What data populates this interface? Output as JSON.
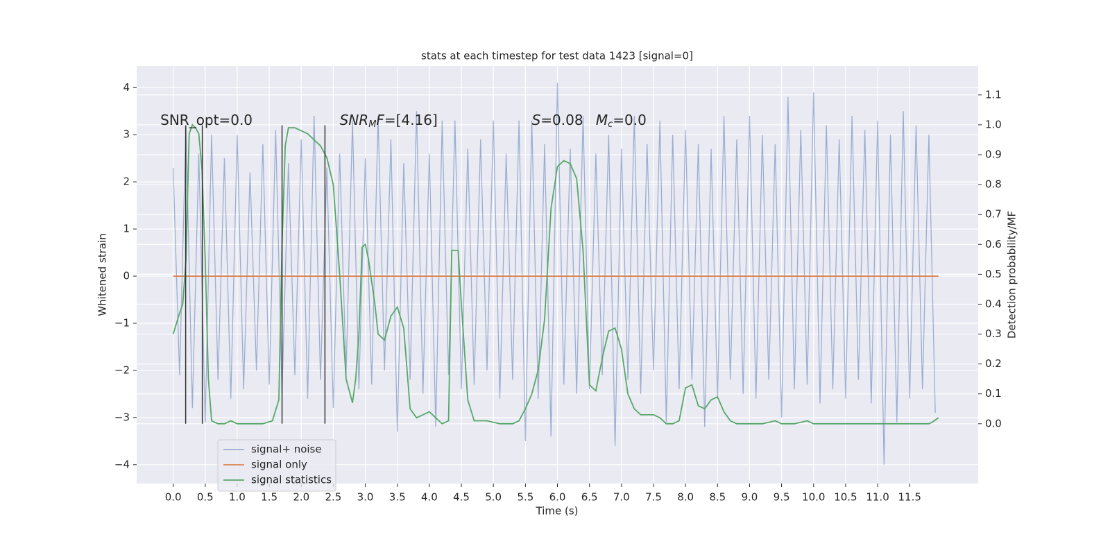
{
  "chart_data": {
    "type": "line",
    "title": "stats at each timestep for test data 1423 [signal=0]",
    "xlabel": "Time (s)",
    "ylabel": "Whitened strain",
    "y2label": "Detection probability/MF",
    "xlim": [
      -0.57,
      12.57
    ],
    "ylim": [
      -4.4,
      4.46
    ],
    "y2lim": [
      -0.2,
      1.197
    ],
    "grid": true,
    "legend": "lower left",
    "xticks": [
      {
        "value": 0,
        "label": "0.0"
      },
      0.5,
      {
        "value": 1,
        "label": "1.0"
      },
      1.5,
      {
        "value": 2,
        "label": "2.0"
      },
      2.5,
      {
        "value": 3,
        "label": "3.0"
      },
      3.5,
      {
        "value": 4,
        "label": "4.0"
      },
      4.5,
      {
        "value": 5,
        "label": "5.0"
      },
      5.5,
      {
        "value": 6,
        "label": "6.0"
      },
      6.5,
      {
        "value": 7,
        "label": "7.0"
      },
      7.5,
      {
        "value": 8,
        "label": "8.0"
      },
      8.5,
      {
        "value": 9,
        "label": "9.0"
      },
      9.5,
      {
        "value": 10,
        "label": "10.0"
      },
      10.5,
      {
        "value": 11,
        "label": "11.0"
      },
      11.5
    ],
    "yticks": [
      {
        "value": -4,
        "label": "−4"
      },
      {
        "value": -3,
        "label": "−3"
      },
      {
        "value": -2,
        "label": "−2"
      },
      {
        "value": -1,
        "label": "−1"
      },
      0,
      1,
      2,
      3,
      4
    ],
    "y2ticks": [
      {
        "value": 0,
        "label": "0.0"
      },
      0.1,
      0.2,
      0.3,
      0.4,
      0.5,
      0.6,
      0.7,
      0.8,
      0.9,
      {
        "value": 1,
        "label": "1.0"
      },
      1.1
    ],
    "series": [
      {
        "name": "signal+ noise",
        "color": "#4c72b0",
        "opacity": 0.5,
        "x": [
          0,
          0.1,
          0.2,
          0.3,
          0.4,
          0.5,
          0.6,
          0.7,
          0.8,
          0.9,
          1,
          1.1,
          1.2,
          1.3,
          1.4,
          1.5,
          1.6,
          1.7,
          1.8,
          1.9,
          2,
          2.1,
          2.2,
          2.3,
          2.4,
          2.5,
          2.6,
          2.7,
          2.8,
          2.9,
          3,
          3.1,
          3.2,
          3.3,
          3.4,
          3.5,
          3.6,
          3.7,
          3.8,
          3.9,
          4,
          4.1,
          4.2,
          4.3,
          4.4,
          4.5,
          4.6,
          4.7,
          4.8,
          4.9,
          5,
          5.1,
          5.2,
          5.3,
          5.4,
          5.5,
          5.6,
          5.7,
          5.8,
          5.9,
          6,
          6.1,
          6.2,
          6.3,
          6.4,
          6.5,
          6.6,
          6.7,
          6.8,
          6.9,
          7,
          7.1,
          7.2,
          7.3,
          7.4,
          7.5,
          7.6,
          7.7,
          7.8,
          7.9,
          8,
          8.1,
          8.2,
          8.3,
          8.4,
          8.5,
          8.6,
          8.7,
          8.8,
          8.9,
          9,
          9.1,
          9.2,
          9.3,
          9.4,
          9.5,
          9.6,
          9.7,
          9.8,
          9.9,
          10,
          10.1,
          10.2,
          10.3,
          10.4,
          10.5,
          10.6,
          10.7,
          10.8,
          10.9,
          11,
          11.1,
          11.2,
          11.3,
          11.4,
          11.5,
          11.6,
          11.7,
          11.8,
          11.9
        ],
        "values": [
          2.3,
          -2.1,
          3.2,
          -2.8,
          2.6,
          -3.1,
          3.0,
          -2.2,
          2.5,
          -2.6,
          3.0,
          -2.4,
          2.2,
          -2.0,
          2.8,
          -2.3,
          3.1,
          -2.5,
          2.4,
          -2.1,
          2.9,
          -2.6,
          3.4,
          -2.2,
          2.3,
          -2.8,
          2.6,
          -2.1,
          3.3,
          -2.4,
          2.5,
          -2.3,
          3.4,
          -2.0,
          2.9,
          -3.3,
          2.4,
          -2.2,
          3.5,
          -2.5,
          2.6,
          -3.2,
          3.3,
          -2.1,
          3.3,
          -2.4,
          2.7,
          -2.3,
          2.9,
          -2.0,
          3.3,
          -2.6,
          2.6,
          -2.2,
          3.3,
          -3.5,
          3.3,
          -2.6,
          2.8,
          -3.4,
          4.1,
          -2.3,
          2.7,
          -2.5,
          3.4,
          -2.4,
          2.6,
          -2.1,
          3.0,
          -3.6,
          2.7,
          -2.2,
          3.4,
          -2.5,
          2.8,
          -2.0,
          3.3,
          -3.1,
          3.0,
          -2.4,
          3.1,
          -2.2,
          2.8,
          -3.2,
          2.7,
          -2.6,
          3.4,
          -2.2,
          2.9,
          -2.5,
          3.4,
          -2.6,
          3.0,
          -2.2,
          2.8,
          -3.0,
          3.8,
          -2.4,
          3.1,
          -2.3,
          3.9,
          -2.7,
          3.2,
          -2.4,
          2.9,
          -2.6,
          3.4,
          -2.2,
          3.1,
          -2.7,
          3.3,
          -4.0,
          3.0,
          -3.1,
          3.5,
          -2.6,
          3.2,
          -2.4,
          3.0,
          -2.9
        ]
      },
      {
        "name": "signal only",
        "color": "#dd8452",
        "x": [
          0,
          11.95
        ],
        "values": [
          0,
          0
        ]
      },
      {
        "name": "signal statistics",
        "color": "#55a868",
        "axis": "y2",
        "x": [
          0,
          0.1,
          0.15,
          0.2,
          0.25,
          0.3,
          0.35,
          0.4,
          0.45,
          0.5,
          0.55,
          0.6,
          0.7,
          0.8,
          0.9,
          1,
          1.2,
          1.4,
          1.55,
          1.65,
          1.7,
          1.75,
          1.8,
          1.9,
          2.1,
          2.3,
          2.4,
          2.5,
          2.6,
          2.7,
          2.8,
          2.85,
          2.9,
          2.95,
          3,
          3.05,
          3.15,
          3.2,
          3.3,
          3.4,
          3.5,
          3.6,
          3.7,
          3.8,
          3.9,
          4,
          4.1,
          4.2,
          4.3,
          4.35,
          4.45,
          4.5,
          4.6,
          4.7,
          4.9,
          5.1,
          5.3,
          5.4,
          5.5,
          5.6,
          5.7,
          5.8,
          5.9,
          6,
          6.1,
          6.2,
          6.3,
          6.4,
          6.5,
          6.6,
          6.7,
          6.8,
          6.9,
          7,
          7.1,
          7.2,
          7.3,
          7.5,
          7.6,
          7.7,
          7.8,
          7.9,
          8,
          8.1,
          8.2,
          8.3,
          8.4,
          8.5,
          8.6,
          8.7,
          8.8,
          9,
          9.2,
          9.4,
          9.5,
          9.7,
          9.9,
          10,
          11,
          11.8,
          11.85,
          11.95
        ],
        "values": [
          0.3,
          0.37,
          0.4,
          0.55,
          0.97,
          1.0,
          0.99,
          0.97,
          0.85,
          0.55,
          0.15,
          0.01,
          0,
          0,
          0.01,
          0,
          0,
          0,
          0.01,
          0.08,
          0.6,
          0.93,
          0.99,
          0.99,
          0.97,
          0.93,
          0.89,
          0.8,
          0.5,
          0.15,
          0.07,
          0.15,
          0.3,
          0.59,
          0.6,
          0.55,
          0.4,
          0.3,
          0.28,
          0.36,
          0.39,
          0.32,
          0.05,
          0.02,
          0.03,
          0.04,
          0.02,
          0,
          0.01,
          0.58,
          0.58,
          0.4,
          0.08,
          0.01,
          0.01,
          0,
          0,
          0.01,
          0.05,
          0.1,
          0.18,
          0.35,
          0.72,
          0.86,
          0.88,
          0.87,
          0.82,
          0.58,
          0.13,
          0.11,
          0.22,
          0.31,
          0.32,
          0.25,
          0.1,
          0.05,
          0.03,
          0.03,
          0.02,
          0,
          0,
          0.01,
          0.12,
          0.13,
          0.06,
          0.05,
          0.08,
          0.09,
          0.04,
          0.01,
          0,
          0,
          0,
          0.01,
          0,
          0,
          0.01,
          0,
          0,
          0,
          0.005,
          0.02
        ]
      }
    ],
    "vlines": {
      "x": [
        0.195,
        0.455,
        1.7,
        2.37
      ],
      "ymin": -3.13,
      "ymax": 3.2,
      "color": "#333333"
    },
    "annotations": [
      {
        "x": -0.2,
        "y": 3.3,
        "parts": [
          {
            "text": "SNR_opt=0.0",
            "style": "normal"
          }
        ]
      },
      {
        "x": 2.6,
        "y": 3.3,
        "parts": [
          {
            "text": "SNR",
            "style": "italic"
          },
          {
            "text": "M",
            "style": "sub"
          },
          {
            "text": "F",
            "style": "italic"
          },
          {
            "text": "=[4.16]",
            "style": "normal"
          }
        ]
      },
      {
        "x": 5.6,
        "y": 3.3,
        "parts": [
          {
            "text": "S",
            "style": "italic"
          },
          {
            "text": "=0.08",
            "style": "normal"
          }
        ]
      },
      {
        "x": 6.6,
        "y": 3.3,
        "parts": [
          {
            "text": "M",
            "style": "italic"
          },
          {
            "text": "c",
            "style": "sub"
          },
          {
            "text": "=0.0",
            "style": "normal"
          }
        ]
      }
    ]
  }
}
